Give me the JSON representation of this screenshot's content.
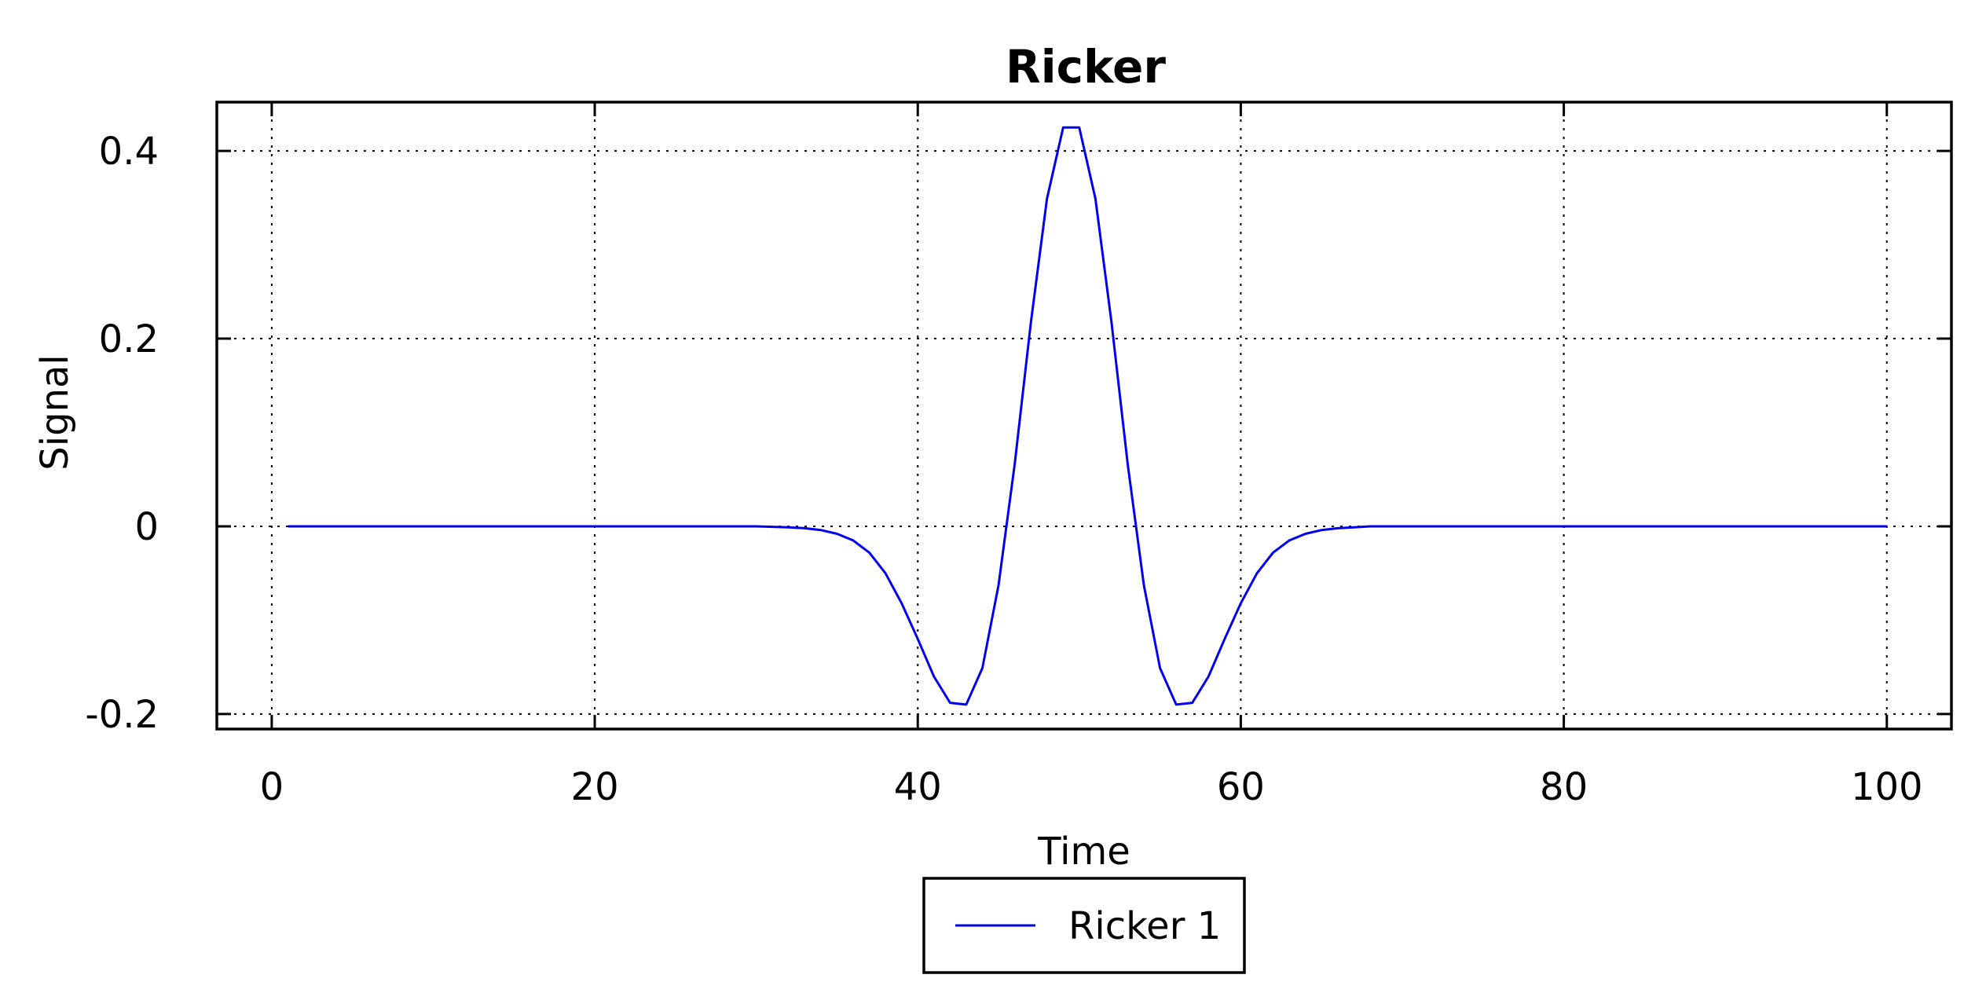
{
  "chart_data": {
    "type": "line",
    "title": "Ricker",
    "xlabel": "Time",
    "ylabel": "Signal",
    "xlim": [
      -3.4,
      104
    ],
    "ylim": [
      -0.216,
      0.452
    ],
    "xticks": [
      0,
      20,
      40,
      60,
      80,
      100
    ],
    "xtick_labels": [
      "0",
      "20",
      "40",
      "60",
      "80",
      "100"
    ],
    "yticks": [
      -0.2,
      0,
      0.2,
      0.4
    ],
    "ytick_labels": [
      "-0.2",
      "0",
      "0.2",
      "0.4"
    ],
    "grid": true,
    "legend_position": "bottom-center",
    "series": [
      {
        "name": "Ricker 1",
        "color": "#0000ee",
        "x": [
          1,
          30,
          32,
          33,
          34,
          35,
          36,
          37,
          38,
          39,
          40,
          41,
          42,
          43,
          44,
          45,
          46,
          47,
          48,
          49,
          50,
          51,
          52,
          53,
          54,
          55,
          56,
          57,
          58,
          59,
          60,
          61,
          62,
          63,
          64,
          65,
          66,
          67,
          68,
          69,
          70,
          100
        ],
        "y": [
          0,
          0,
          -0.001,
          -0.002,
          -0.004,
          -0.008,
          -0.015,
          -0.028,
          -0.05,
          -0.082,
          -0.12,
          -0.16,
          -0.188,
          -0.19,
          -0.151,
          -0.063,
          0.066,
          0.217,
          0.349,
          0.425,
          0.425,
          0.349,
          0.217,
          0.066,
          -0.063,
          -0.151,
          -0.19,
          -0.188,
          -0.16,
          -0.12,
          -0.082,
          -0.05,
          -0.028,
          -0.015,
          -0.008,
          -0.004,
          -0.002,
          -0.001,
          0,
          0,
          0,
          0
        ]
      }
    ]
  }
}
